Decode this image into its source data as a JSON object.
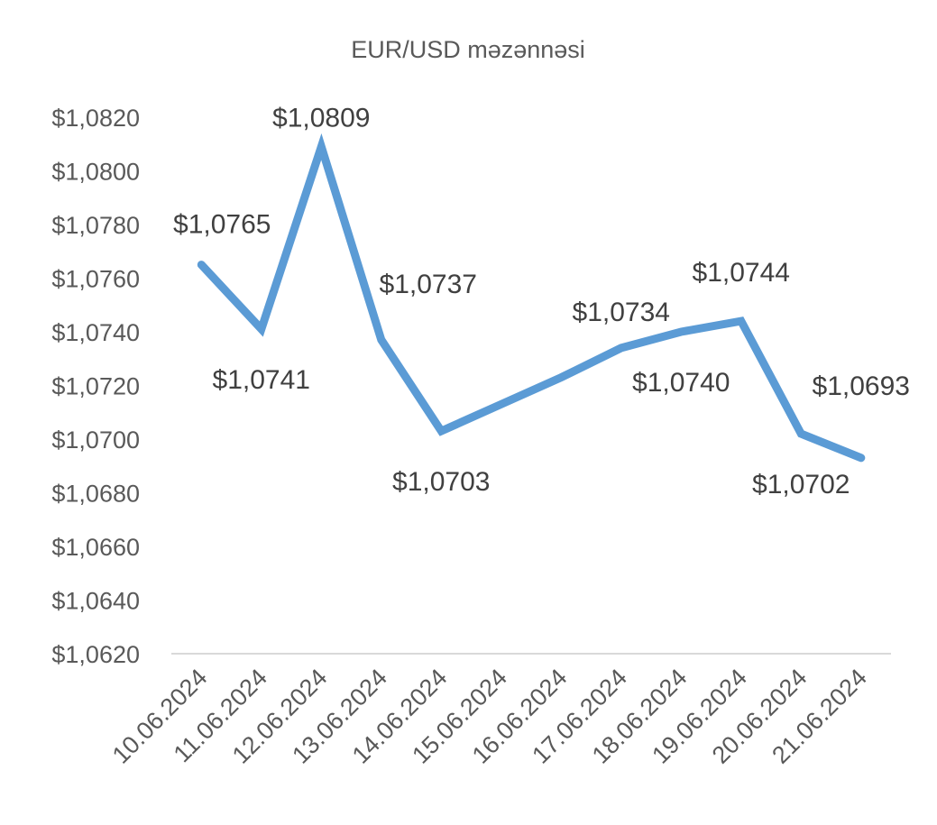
{
  "chart_data": {
    "type": "line",
    "title": "EUR/USD məzənnəsi",
    "xlabel": "",
    "ylabel": "",
    "categories": [
      "10.06.2024",
      "11.06.2024",
      "12.06.2024",
      "13.06.2024",
      "14.06.2024",
      "15.06.2024",
      "16.06.2024",
      "17.06.2024",
      "18.06.2024",
      "19.06.2024",
      "20.06.2024",
      "21.06.2024"
    ],
    "series": [
      {
        "values": [
          1.0765,
          1.0741,
          1.0809,
          1.0737,
          1.0703,
          1.0713,
          1.0723,
          1.0734,
          1.074,
          1.0744,
          1.0702,
          1.0693
        ],
        "color": "#5B9BD5"
      }
    ],
    "data_labels": [
      "$1,0765",
      "$1,0741",
      "$1,0809",
      "$1,0737",
      "$1,0703",
      "",
      "",
      "$1,0734",
      "$1,0740",
      "$1,0744",
      "$1,0702",
      "$1,0693"
    ],
    "ylim": [
      1.062,
      1.082
    ],
    "yticks": [
      1.082,
      1.08,
      1.078,
      1.076,
      1.074,
      1.072,
      1.07,
      1.068,
      1.066,
      1.064,
      1.062
    ],
    "ytick_labels": [
      "$1,0820",
      "$1,0800",
      "$1,0780",
      "$1,0760",
      "$1,0740",
      "$1,0720",
      "$1,0700",
      "$1,0680",
      "$1,0660",
      "$1,0640",
      "$1,0620"
    ],
    "grid": false,
    "legend": "none",
    "axis_color": "#D9D9D9",
    "text_color": "#595959"
  }
}
